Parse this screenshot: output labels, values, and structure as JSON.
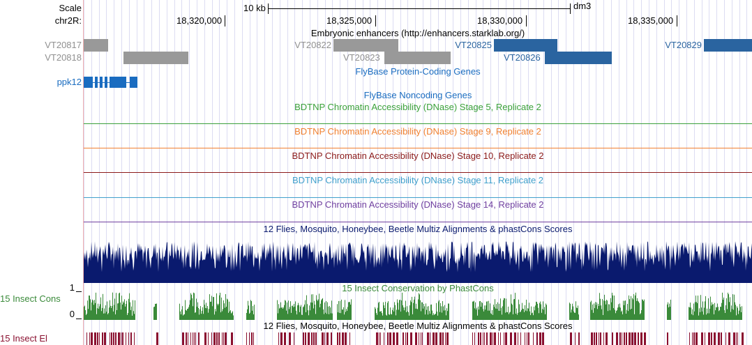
{
  "ruler": {
    "scale_label": "Scale",
    "scale_value": "10 kb",
    "assembly": "dm3",
    "chrom_label": "chr2R:",
    "ticks": [
      "18,320,000",
      "18,325,000",
      "18,330,000",
      "18,335,000"
    ]
  },
  "tracks": {
    "enhancers": {
      "title": "Embryonic enhancers (http://enhancers.starklab.org/)",
      "items": [
        "VT20817",
        "VT20818",
        "VT20822",
        "VT20823",
        "VT20825",
        "VT20826",
        "VT20829"
      ]
    },
    "coding": {
      "title": "FlyBase Protein-Coding Genes",
      "gene": "ppk12"
    },
    "noncoding": {
      "title": "FlyBase Noncoding Genes"
    },
    "dnase": [
      {
        "title": "BDTNP Chromatin Accessibility (DNase) Stage 5, Replicate 2",
        "color": "#3aa03a"
      },
      {
        "title": "BDTNP Chromatin Accessibility (DNase) Stage 9, Replicate 2",
        "color": "#f08030"
      },
      {
        "title": "BDTNP Chromatin Accessibility (DNase) Stage 10, Replicate 2",
        "color": "#8b1a1a"
      },
      {
        "title": "BDTNP Chromatin Accessibility (DNase) Stage 11, Replicate 2",
        "color": "#40a0cc"
      },
      {
        "title": "BDTNP Chromatin Accessibility (DNase) Stage 14, Replicate 2",
        "color": "#7040a0"
      }
    ],
    "multiz": {
      "title": "12 Flies, Mosquito, Honeybee, Beetle Multiz Alignments & phastCons Scores",
      "color": "#0a1a6e"
    },
    "insect_cons": {
      "title": "15 Insect Conservation by PhastCons",
      "label": "15 Insect Cons",
      "ymax": "1",
      "ymin": "0",
      "color": "#3a8a3a"
    },
    "insect_el": {
      "title": "12 Flies, Mosquito, Honeybee, Beetle Multiz Alignments & phastCons Scores",
      "label": "15 Insect El",
      "color": "#8a1030"
    }
  },
  "colors": {
    "grey_feature": "#999999",
    "blue_feature": "#2a64a0",
    "gene_blue": "#1a6cc0",
    "grid": "#dcdcf2"
  }
}
